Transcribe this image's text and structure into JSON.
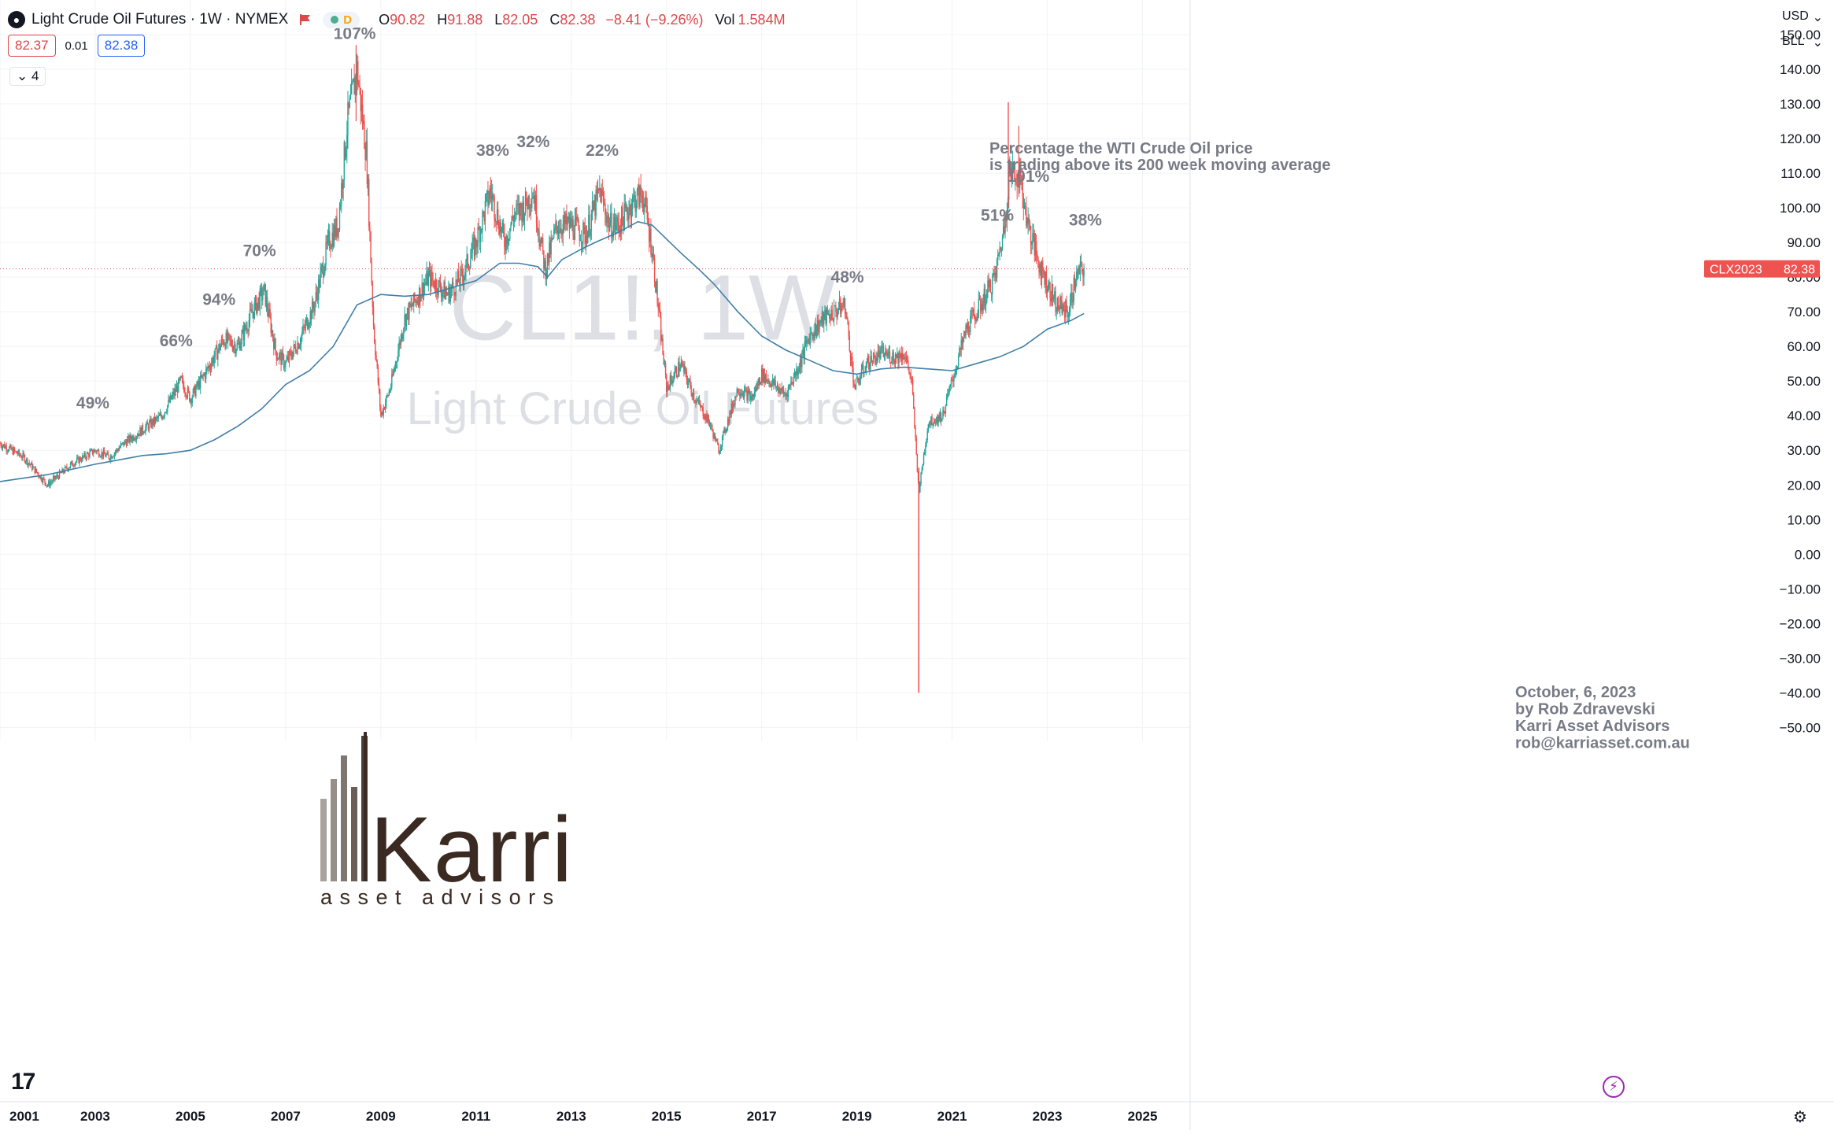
{
  "header": {
    "symbol_logo": "●",
    "symbol_title": "Light Crude Oil Futures · 1W · NYMEX",
    "flag_icon": "red-flag-icon",
    "badge_letter": "D",
    "ohlc": {
      "o_label": "O",
      "o_value": "90.82",
      "h_label": "H",
      "h_value": "91.88",
      "l_label": "L",
      "l_value": "82.05",
      "c_label": "C",
      "c_value": "82.38",
      "change": "−8.41 (−9.26%)",
      "vol_label": "Vol",
      "vol_value": "1.584M"
    },
    "bid": "82.37",
    "spread": "0.01",
    "ask": "82.38",
    "indicator_count": "4"
  },
  "right_controls": {
    "currency": "USD",
    "unit": "BLL"
  },
  "price_label": {
    "symbol": "CLX2023",
    "price": "82.38"
  },
  "watermark": {
    "line1": "CL1!, 1W",
    "line2": "Light Crude Oil Futures"
  },
  "annotations": {
    "note_line1": "Percentage the WTI Crude Oil price",
    "note_line2": "is trading above its 200 week moving average",
    "author_lines": [
      "October, 6, 2023",
      "by Rob Zdravevski",
      "Karri Asset Advisors",
      "rob@karriasset.com.au"
    ],
    "peaks": [
      {
        "label": "49%",
        "date": 2002.95
      },
      {
        "label": "66%",
        "date": 2004.7
      },
      {
        "label": "94%",
        "date": 2005.6
      },
      {
        "label": "70%",
        "date": 2006.45
      },
      {
        "label": "107%",
        "date": 2008.45
      },
      {
        "label": "38%",
        "date": 2011.35
      },
      {
        "label": "32%",
        "date": 2012.2
      },
      {
        "label": "22%",
        "date": 2013.65
      },
      {
        "label": "48%",
        "date": 2018.8
      },
      {
        "label": "51%",
        "date": 2021.95
      },
      {
        "label": "101%",
        "date": 2022.6
      },
      {
        "label": "38%",
        "date": 2023.8
      }
    ]
  },
  "logo": {
    "name": "Karri",
    "tagline": "asset advisors"
  },
  "branding": {
    "tv_logo": "17",
    "bolt_icon": "⚡",
    "settings_icon": "⚙"
  },
  "colors": {
    "up": "#26a69a",
    "down": "#ef5350",
    "ma": "#3f7fa8",
    "price_line": "#ef5350",
    "logo_dark": "#3b2a22"
  },
  "chart_data": {
    "type": "line",
    "title": "",
    "xlabel": "",
    "ylabel": "",
    "x_ticks": [
      "2001",
      "2003",
      "2005",
      "2007",
      "2009",
      "2011",
      "2013",
      "2015",
      "2017",
      "2019",
      "2021",
      "2023",
      "2025"
    ],
    "y_ticks": [
      "150.00",
      "140.00",
      "130.00",
      "120.00",
      "110.00",
      "100.00",
      "90.00",
      "80.00",
      "70.00",
      "60.00",
      "50.00",
      "40.00",
      "30.00",
      "20.00",
      "10.00",
      "0.00",
      "−10.00",
      "−20.00",
      "−30.00",
      "−40.00",
      "−50.00"
    ],
    "xlim": [
      2001.0,
      2026.0
    ],
    "ylim": [
      -54.0,
      160.0
    ],
    "last_price": 82.38,
    "series": [
      {
        "name": "CL1! 1W",
        "style": "candles",
        "x": [
          2001.0,
          2001.5,
          2002.0,
          2002.5,
          2003.0,
          2003.3,
          2003.6,
          2004.0,
          2004.4,
          2004.8,
          2005.0,
          2005.3,
          2005.7,
          2006.0,
          2006.3,
          2006.55,
          2006.8,
          2007.0,
          2007.3,
          2007.6,
          2007.9,
          2008.1,
          2008.3,
          2008.5,
          2008.7,
          2008.85,
          2009.0,
          2009.2,
          2009.5,
          2009.8,
          2010.0,
          2010.4,
          2010.7,
          2011.0,
          2011.3,
          2011.6,
          2011.8,
          2012.0,
          2012.2,
          2012.45,
          2012.7,
          2013.0,
          2013.3,
          2013.6,
          2013.8,
          2014.0,
          2014.3,
          2014.5,
          2014.7,
          2015.0,
          2015.3,
          2015.6,
          2015.9,
          2016.1,
          2016.5,
          2016.8,
          2017.0,
          2017.5,
          2017.8,
          2018.0,
          2018.3,
          2018.75,
          2018.95,
          2019.2,
          2019.5,
          2019.8,
          2020.0,
          2020.15,
          2020.3,
          2020.5,
          2020.8,
          2021.0,
          2021.3,
          2021.6,
          2021.9,
          2022.1,
          2022.2,
          2022.4,
          2022.6,
          2022.8,
          2023.0,
          2023.2,
          2023.45,
          2023.6,
          2023.77
        ],
        "values": [
          32,
          28,
          20,
          26,
          30,
          28,
          32,
          36,
          40,
          50,
          45,
          52,
          62,
          60,
          70,
          76,
          58,
          55,
          62,
          72,
          90,
          95,
          125,
          140,
          115,
          65,
          40,
          48,
          68,
          75,
          80,
          75,
          80,
          90,
          105,
          90,
          98,
          100,
          105,
          82,
          95,
          95,
          92,
          105,
          95,
          95,
          102,
          104,
          88,
          48,
          55,
          45,
          38,
          30,
          48,
          45,
          52,
          46,
          55,
          63,
          68,
          72,
          48,
          55,
          58,
          57,
          58,
          50,
          18,
          38,
          40,
          50,
          65,
          72,
          80,
          95,
          110,
          110,
          95,
          85,
          78,
          72,
          70,
          80,
          82.38
        ]
      },
      {
        "name": "200 week MA",
        "style": "line",
        "x": [
          2001.0,
          2002.0,
          2003.0,
          2004.0,
          2004.5,
          2005.0,
          2005.5,
          2006.0,
          2006.5,
          2007.0,
          2007.5,
          2008.0,
          2008.5,
          2009.0,
          2009.5,
          2010.0,
          2010.5,
          2011.0,
          2011.5,
          2011.9,
          2012.3,
          2012.5,
          2012.8,
          2013.2,
          2013.5,
          2014.0,
          2014.4,
          2014.7,
          2015.0,
          2015.3,
          2015.7,
          2016.0,
          2016.5,
          2017.0,
          2017.5,
          2018.0,
          2018.5,
          2019.0,
          2019.5,
          2020.0,
          2020.5,
          2021.0,
          2021.5,
          2022.0,
          2022.5,
          2023.0,
          2023.5,
          2023.77
        ],
        "values": [
          21,
          23,
          26,
          28.5,
          29,
          30,
          33,
          37,
          42,
          49,
          53,
          60,
          72,
          75,
          74.5,
          75,
          77,
          79,
          84,
          84,
          83,
          80,
          85,
          88,
          90,
          93,
          96,
          95,
          91,
          87,
          82,
          78,
          70,
          63,
          59,
          56,
          53,
          52,
          53.5,
          54,
          53.5,
          53,
          55,
          57,
          60,
          65,
          67.5,
          69.5
        ]
      }
    ]
  }
}
